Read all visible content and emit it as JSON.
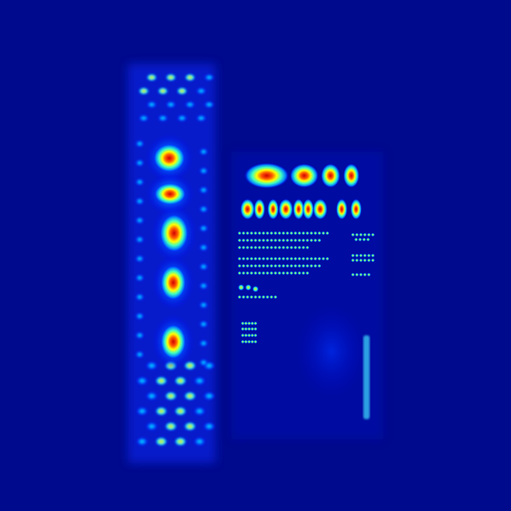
{
  "image": {
    "kind": "attention-heatmap-overlay",
    "colormap": [
      "#00008c",
      "#0000ff",
      "#00c8ff",
      "#40ffc0",
      "#ffff00",
      "#ff6000",
      "#d00000"
    ],
    "background_color": "#000a8c"
  },
  "regions": [
    {
      "name": "left-column-dot-grid",
      "intensity": "mixed"
    },
    {
      "name": "left-column-hot-blobs",
      "intensity": "high"
    },
    {
      "name": "right-panel-header-blobs",
      "intensity": "high"
    },
    {
      "name": "right-panel-text-traces",
      "intensity": "medium"
    },
    {
      "name": "right-edge-streak",
      "intensity": "low"
    }
  ]
}
